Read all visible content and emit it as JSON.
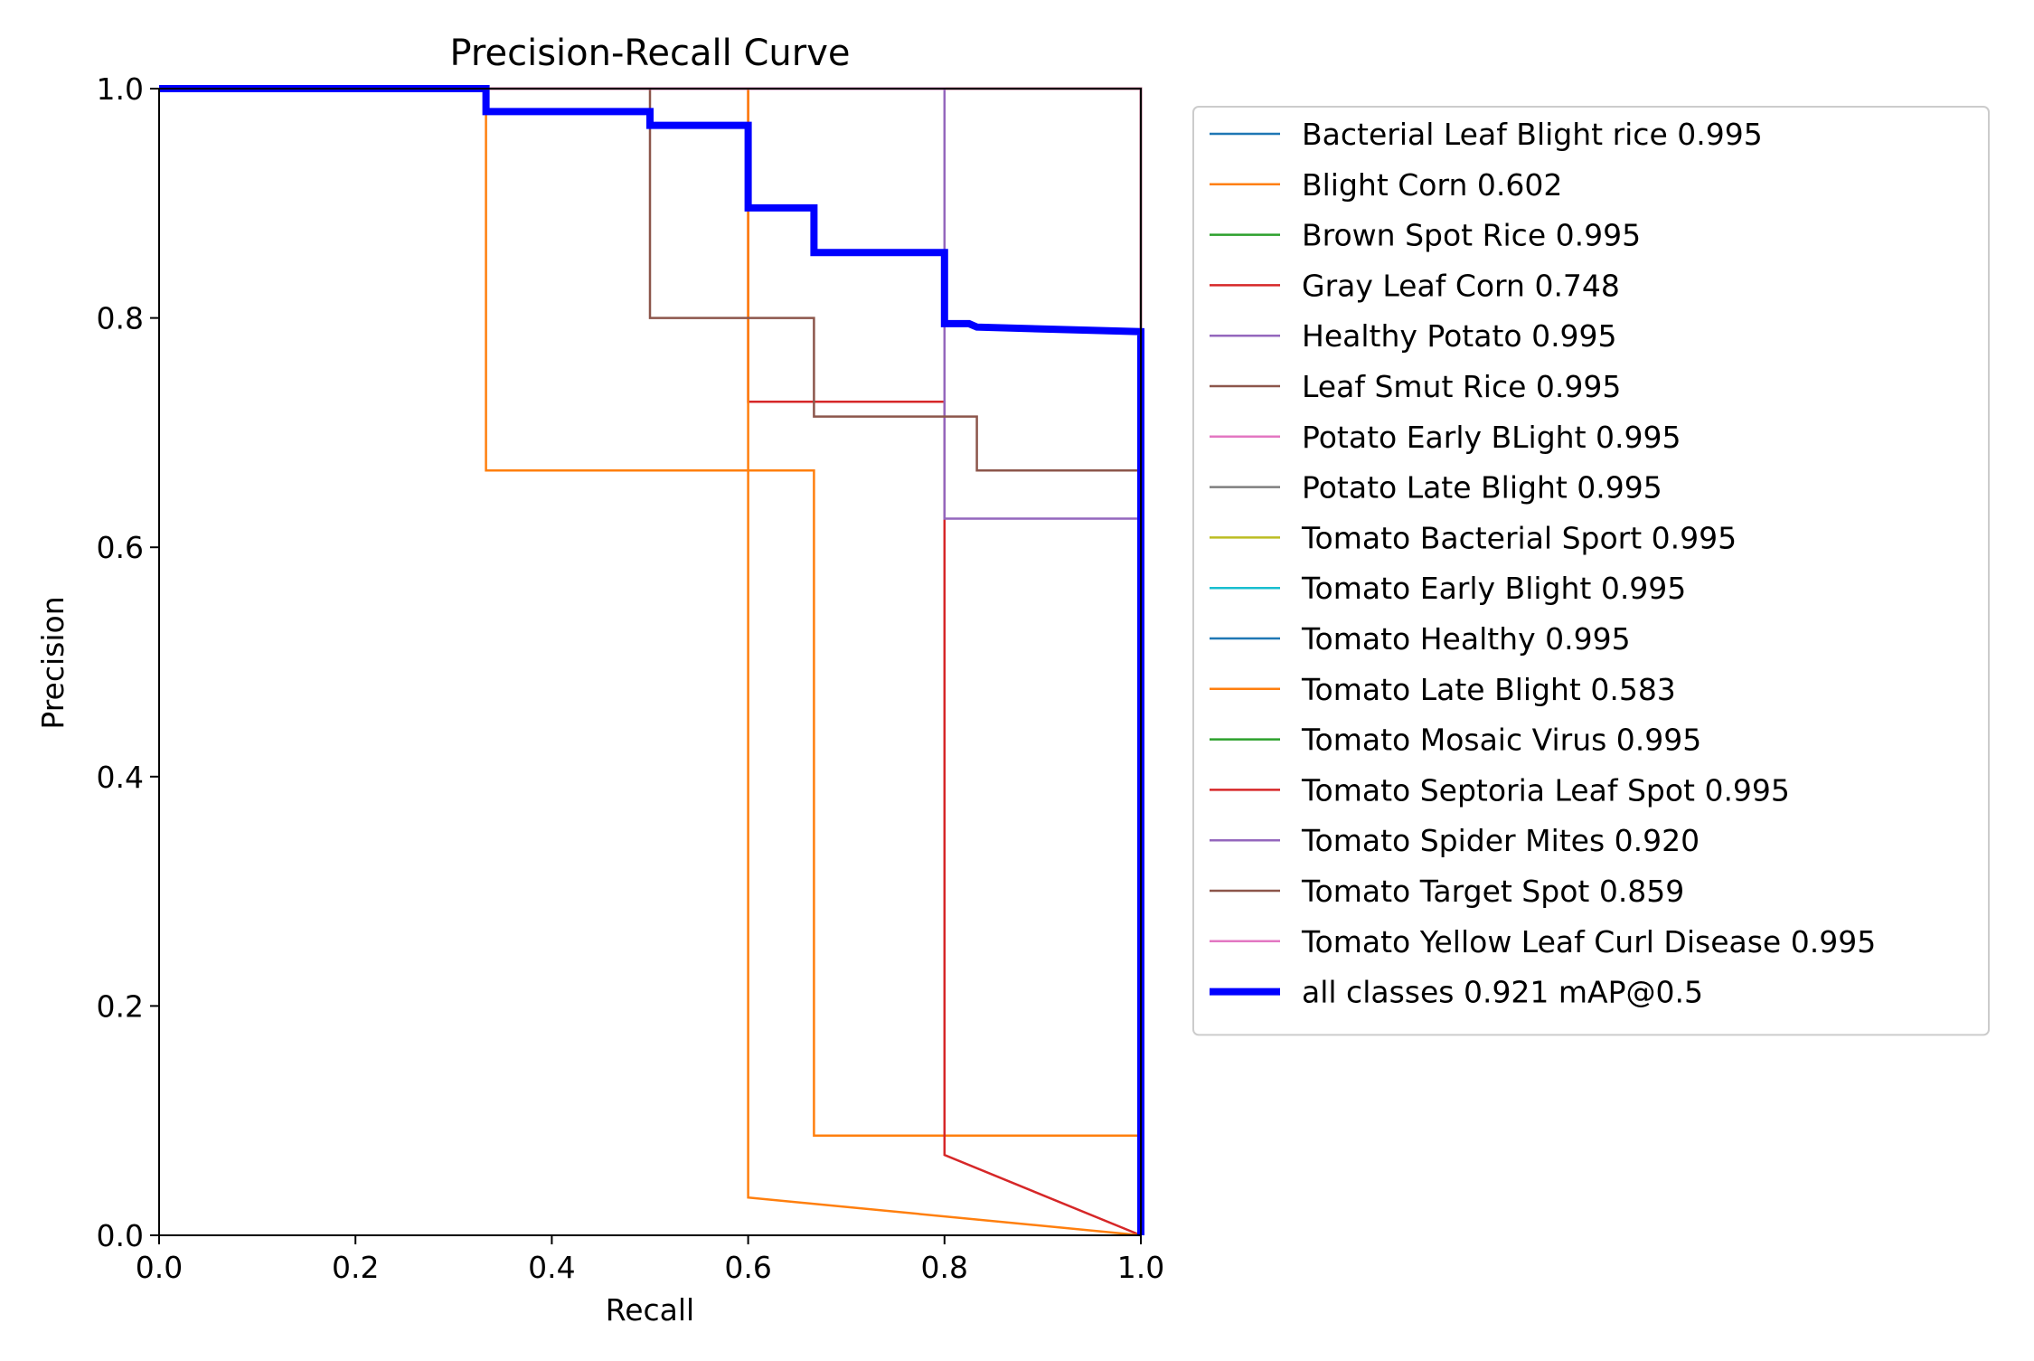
{
  "chart_data": {
    "type": "line",
    "title": "Precision-Recall Curve",
    "xlabel": "Recall",
    "ylabel": "Precision",
    "xlim": [
      0,
      1
    ],
    "ylim": [
      0,
      1
    ],
    "xticks": [
      "0.0",
      "0.2",
      "0.4",
      "0.6",
      "0.8",
      "1.0"
    ],
    "yticks": [
      "0.0",
      "0.2",
      "0.4",
      "0.6",
      "0.8",
      "1.0"
    ],
    "grid": false,
    "legend_position": "outside-right",
    "series": [
      {
        "name": "Bacterial Leaf Blight rice 0.995",
        "color": "#1f77b4",
        "points": [
          [
            0,
            1
          ],
          [
            1,
            1
          ],
          [
            1,
            0
          ]
        ]
      },
      {
        "name": "Blight Corn 0.602",
        "color": "#ff7f0e",
        "points": [
          [
            0,
            1
          ],
          [
            0.333,
            1
          ],
          [
            0.333,
            0.667
          ],
          [
            0.667,
            0.667
          ],
          [
            0.667,
            0.087
          ],
          [
            1,
            0.087
          ],
          [
            1,
            0
          ]
        ]
      },
      {
        "name": "Brown Spot Rice 0.995",
        "color": "#2ca02c",
        "points": [
          [
            0,
            1
          ],
          [
            1,
            1
          ],
          [
            1,
            0
          ]
        ]
      },
      {
        "name": "Gray Leaf Corn 0.748",
        "color": "#d62728",
        "points": [
          [
            0,
            1
          ],
          [
            0.6,
            1
          ],
          [
            0.6,
            0.727
          ],
          [
            0.8,
            0.727
          ],
          [
            0.8,
            0.07
          ],
          [
            1,
            0
          ]
        ]
      },
      {
        "name": "Healthy Potato 0.995",
        "color": "#9467bd",
        "points": [
          [
            0,
            1
          ],
          [
            1,
            1
          ],
          [
            1,
            0
          ]
        ]
      },
      {
        "name": "Leaf Smut Rice 0.995",
        "color": "#8c564b",
        "points": [
          [
            0,
            1
          ],
          [
            1,
            1
          ],
          [
            1,
            0
          ]
        ]
      },
      {
        "name": "Potato Early BLight 0.995",
        "color": "#e377c2",
        "points": [
          [
            0,
            1
          ],
          [
            1,
            1
          ],
          [
            1,
            0
          ]
        ]
      },
      {
        "name": "Potato Late Blight 0.995",
        "color": "#7f7f7f",
        "points": [
          [
            0,
            1
          ],
          [
            1,
            1
          ],
          [
            1,
            0
          ]
        ]
      },
      {
        "name": "Tomato Bacterial Sport 0.995",
        "color": "#bcbd22",
        "points": [
          [
            0,
            1
          ],
          [
            1,
            1
          ],
          [
            1,
            0
          ]
        ]
      },
      {
        "name": "Tomato Early Blight 0.995",
        "color": "#17becf",
        "points": [
          [
            0,
            1
          ],
          [
            1,
            1
          ],
          [
            1,
            0
          ]
        ]
      },
      {
        "name": "Tomato Healthy 0.995",
        "color": "#1f77b4",
        "points": [
          [
            0,
            1
          ],
          [
            1,
            1
          ],
          [
            1,
            0
          ]
        ]
      },
      {
        "name": "Tomato Late Blight 0.583",
        "color": "#ff7f0e",
        "points": [
          [
            0,
            1
          ],
          [
            0.6,
            1
          ],
          [
            0.6,
            0.033
          ],
          [
            1,
            0
          ]
        ]
      },
      {
        "name": "Tomato Mosaic Virus 0.995",
        "color": "#2ca02c",
        "points": [
          [
            0,
            1
          ],
          [
            1,
            1
          ],
          [
            1,
            0
          ]
        ]
      },
      {
        "name": "Tomato Septoria Leaf Spot 0.995",
        "color": "#d62728",
        "points": [
          [
            0,
            1
          ],
          [
            1,
            1
          ],
          [
            1,
            0
          ]
        ]
      },
      {
        "name": "Tomato Spider Mites 0.920",
        "color": "#9467bd",
        "points": [
          [
            0,
            1
          ],
          [
            0.8,
            1
          ],
          [
            0.8,
            0.625
          ],
          [
            1,
            0.625
          ],
          [
            1,
            0
          ]
        ]
      },
      {
        "name": "Tomato Target Spot 0.859",
        "color": "#8c564b",
        "points": [
          [
            0,
            1
          ],
          [
            0.5,
            1
          ],
          [
            0.5,
            0.8
          ],
          [
            0.667,
            0.8
          ],
          [
            0.667,
            0.714
          ],
          [
            0.833,
            0.714
          ],
          [
            0.833,
            0.667
          ],
          [
            1,
            0.667
          ],
          [
            1,
            0
          ]
        ]
      },
      {
        "name": "Tomato Yellow Leaf Curl Disease 0.995",
        "color": "#e377c2",
        "points": [
          [
            0,
            1
          ],
          [
            1,
            1
          ],
          [
            1,
            0
          ]
        ]
      },
      {
        "name": "all classes 0.921 mAP@0.5",
        "color": "#0000ff",
        "bold": true,
        "points": [
          [
            0,
            1
          ],
          [
            0.333,
            1
          ],
          [
            0.333,
            0.98
          ],
          [
            0.5,
            0.98
          ],
          [
            0.5,
            0.968
          ],
          [
            0.6,
            0.968
          ],
          [
            0.6,
            0.896
          ],
          [
            0.667,
            0.896
          ],
          [
            0.667,
            0.857
          ],
          [
            0.8,
            0.857
          ],
          [
            0.8,
            0.795
          ],
          [
            0.825,
            0.795
          ],
          [
            0.833,
            0.792
          ],
          [
            1,
            0.788
          ],
          [
            1,
            0
          ]
        ]
      }
    ]
  }
}
